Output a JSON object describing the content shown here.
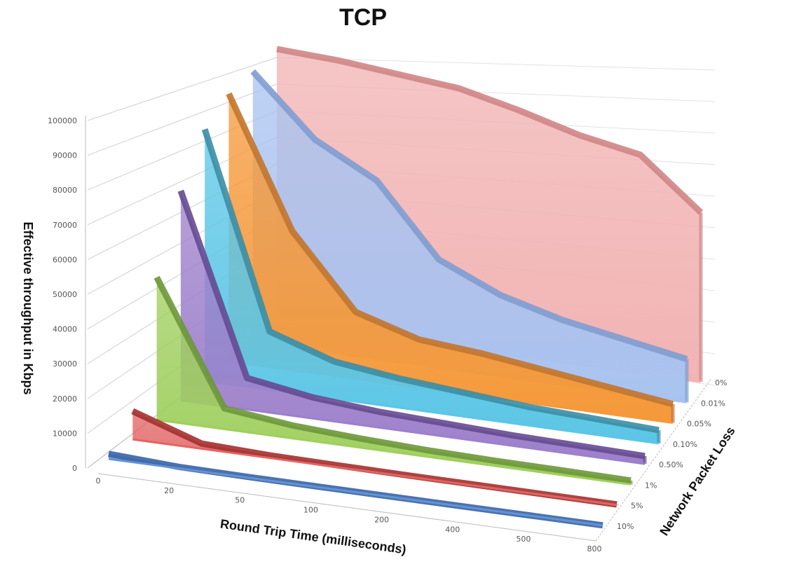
{
  "chart_data": {
    "type": "area",
    "subtype": "3d-area",
    "title": "TCP",
    "xlabel": "Round Trip Time (milliseconds)",
    "ylabel": "Effective throughput in Kbps",
    "zlabel": "Network Packet Loss",
    "categories": [
      "0",
      "20",
      "50",
      "100",
      "200",
      "400",
      "500",
      "800"
    ],
    "y_ticks": [
      "0",
      "10000",
      "20000",
      "30000",
      "40000",
      "50000",
      "60000",
      "70000",
      "80000",
      "90000",
      "100000"
    ],
    "ylim": [
      0,
      100000
    ],
    "grid": true,
    "series": [
      {
        "name": "0%",
        "color": "#f2b3b3",
        "edge": "#cf8585",
        "values": [
          100000,
          99000,
          97000,
          95000,
          90000,
          84000,
          80000,
          62000
        ]
      },
      {
        "name": "0.01%",
        "color": "#a9c3f0",
        "edge": "#7f9dd0",
        "values": [
          100000,
          78000,
          66000,
          40000,
          30000,
          24000,
          20000,
          16000
        ]
      },
      {
        "name": "0.05%",
        "color": "#f5993a",
        "edge": "#c2752d",
        "values": [
          100000,
          52000,
          25000,
          18000,
          16000,
          13000,
          10000,
          7000
        ]
      },
      {
        "name": "0.10%",
        "color": "#5cc6e6",
        "edge": "#3b8ea6",
        "values": [
          95000,
          22000,
          14000,
          11000,
          9000,
          7000,
          6000,
          5000
        ]
      },
      {
        "name": "0.50%",
        "color": "#9d80cb",
        "edge": "#654a92",
        "values": [
          80000,
          12000,
          8000,
          6000,
          5000,
          4000,
          3500,
          3000
        ]
      },
      {
        "name": "1%",
        "color": "#9fcf5e",
        "edge": "#6d973a",
        "values": [
          55000,
          8000,
          5000,
          3500,
          2500,
          2000,
          1800,
          1500
        ]
      },
      {
        "name": "5%",
        "color": "#e26464",
        "edge": "#a3302e",
        "values": [
          11000,
          2000,
          1000,
          700,
          500,
          400,
          300,
          200
        ]
      },
      {
        "name": "10%",
        "color": "#6393d4",
        "edge": "#3763a6",
        "values": [
          2000,
          600,
          300,
          200,
          150,
          100,
          80,
          50
        ]
      }
    ]
  }
}
